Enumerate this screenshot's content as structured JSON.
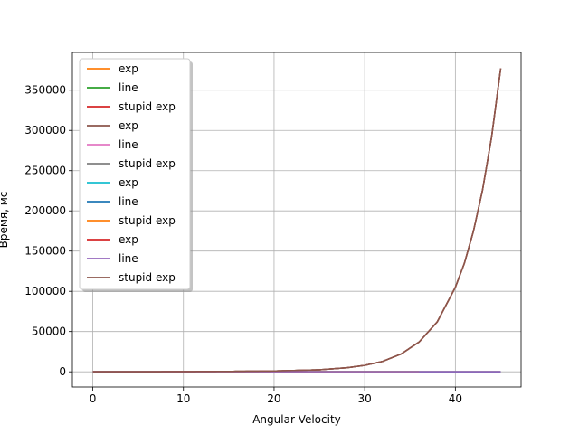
{
  "chart_data": {
    "type": "line",
    "title": "",
    "xlabel": "Angular Velocity",
    "ylabel": "Время, мс",
    "xlim": [
      -2.25,
      47.25
    ],
    "ylim": [
      -18900,
      396900
    ],
    "xticks": [
      0,
      10,
      20,
      30,
      40
    ],
    "yticks": [
      0,
      50000,
      100000,
      150000,
      200000,
      250000,
      300000,
      350000
    ],
    "grid": true,
    "legend_position": "top-left",
    "series": [
      {
        "name": "exp",
        "color": "#ff7f0e",
        "kind": "exp",
        "x_end": 45
      },
      {
        "name": "line",
        "color": "#2ca02c",
        "kind": "flat",
        "x_end": 45
      },
      {
        "name": "stupid exp",
        "color": "#d62728",
        "kind": "flat",
        "x_end": 45
      },
      {
        "name": "exp",
        "color": "#8c564b",
        "kind": "exp",
        "x_end": 45
      },
      {
        "name": "line",
        "color": "#e377c2",
        "kind": "flat",
        "x_end": 45
      },
      {
        "name": "stupid exp",
        "color": "#7f7f7f",
        "kind": "flat",
        "x_end": 36
      },
      {
        "name": "exp",
        "color": "#17becf",
        "kind": "exp",
        "x_end": 45
      },
      {
        "name": "line",
        "color": "#1f77b4",
        "kind": "flat",
        "x_end": 45
      },
      {
        "name": "stupid exp",
        "color": "#ff7f0e",
        "kind": "flat",
        "x_end": 36
      },
      {
        "name": "exp",
        "color": "#d62728",
        "kind": "exp",
        "x_end": 45
      },
      {
        "name": "line",
        "color": "#9467bd",
        "kind": "flat",
        "x_end": 45
      },
      {
        "name": "stupid exp",
        "color": "#8c564b",
        "kind": "exp",
        "x_end": 45
      }
    ],
    "exp_curve": {
      "x": [
        0,
        5,
        10,
        15,
        20,
        25,
        28,
        30,
        32,
        34,
        36,
        38,
        40,
        41,
        42,
        43,
        44,
        45
      ],
      "y": [
        0,
        50,
        200,
        500,
        1000,
        2500,
        5000,
        8000,
        13000,
        22000,
        37000,
        62000,
        105000,
        135000,
        175000,
        226000,
        292000,
        377000
      ]
    }
  }
}
